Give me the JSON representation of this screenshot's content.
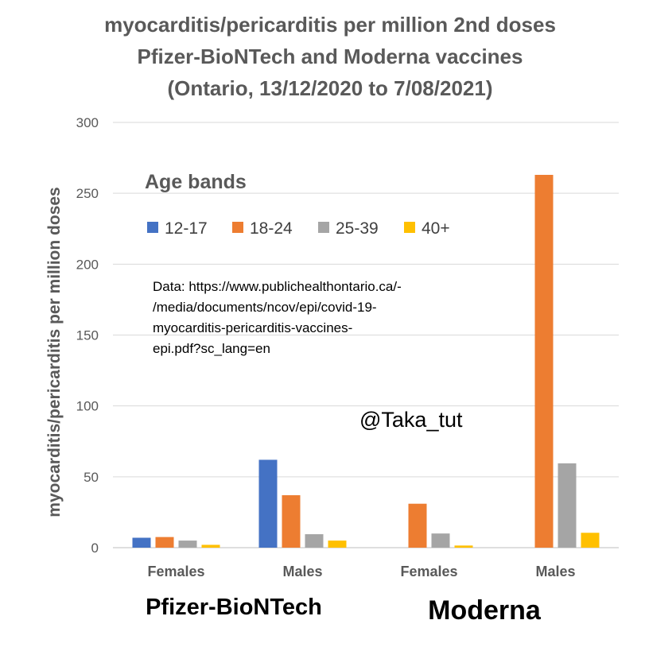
{
  "chart_data": {
    "type": "bar",
    "title_lines": [
      "myocarditis/pericarditis per million 2nd doses",
      "Pfizer-BioNTech and Moderna vaccines",
      "(Ontario, 13/12/2020 to 7/08/2021)"
    ],
    "ylabel": "myocarditis/pericarditis per million doses",
    "ylim": [
      0,
      300
    ],
    "yticks": [
      "0",
      "50",
      "100",
      "150",
      "200",
      "250",
      "300"
    ],
    "grid": true,
    "categories": [
      "Females",
      "Males",
      "Females",
      "Males"
    ],
    "groups": [
      "Pfizer-BioNTech",
      "Moderna"
    ],
    "legend_title": "Age bands",
    "legend_position": "upper-left",
    "series": [
      {
        "name": "12-17",
        "color": "#4472C4",
        "values": [
          7,
          62,
          0,
          0
        ]
      },
      {
        "name": "18-24",
        "color": "#ED7D31",
        "values": [
          7.5,
          37,
          31,
          263
        ]
      },
      {
        "name": "25-39",
        "color": "#A5A5A5",
        "values": [
          5,
          9.5,
          10,
          59.5
        ]
      },
      {
        "name": "40+",
        "color": "#FFC000",
        "values": [
          2,
          5,
          1.5,
          10.5
        ]
      }
    ],
    "annotations": {
      "source_lines": [
        "Data: https://www.publichealthontario.ca/-",
        "/media/documents/ncov/epi/covid-19-",
        "myocarditis-pericarditis-vaccines-",
        "epi.pdf?sc_lang=en"
      ],
      "handle": "@Taka_tut"
    }
  }
}
